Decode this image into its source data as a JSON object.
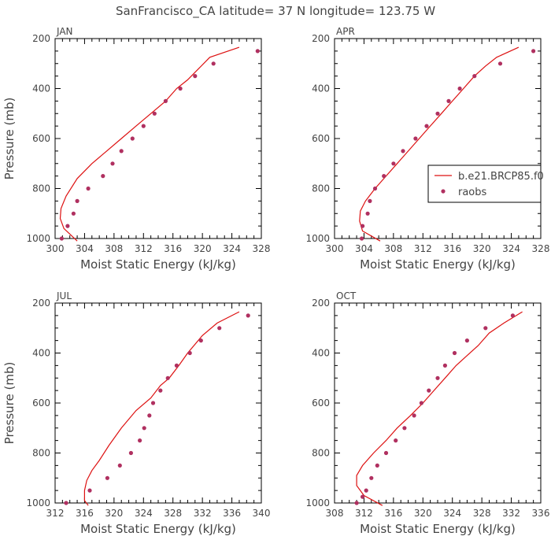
{
  "title": "SanFrancisco_CA  latitude= 37 N longitude= 123.75 W",
  "colors": {
    "model": "#dd1111",
    "obs": "#b03060",
    "axis": "#000000",
    "text": "#444444"
  },
  "legend": {
    "model_label": "b.e21.BRCP85.f0",
    "obs_label": "raobs",
    "position": "right-middle of APR panel"
  },
  "chart_data": [
    {
      "type": "line",
      "panel": "JAN",
      "xlabel": "Moist Static Energy (kJ/kg)",
      "ylabel": "Pressure (mb)",
      "xlim": [
        300,
        328
      ],
      "ylim": [
        200,
        1000
      ],
      "xticks": [
        300,
        304,
        308,
        312,
        316,
        320,
        324,
        328
      ],
      "yticks": [
        200,
        400,
        600,
        800,
        1000
      ],
      "y_inverted": true,
      "series": [
        {
          "name": "b.e21.BRCP85.f0",
          "kind": "line",
          "x": [
            325.0,
            321.0,
            319.5,
            318.0,
            316.5,
            315.0,
            313.0,
            311.0,
            309.0,
            307.0,
            305.0,
            303.0,
            301.5,
            300.8,
            300.7,
            301.2,
            303.0
          ],
          "y": [
            235,
            275,
            320,
            365,
            400,
            450,
            500,
            550,
            600,
            650,
            700,
            760,
            830,
            880,
            920,
            960,
            1010
          ]
        },
        {
          "name": "raobs",
          "kind": "scatter",
          "x": [
            327.5,
            321.5,
            319.0,
            317.0,
            315.0,
            313.5,
            312.0,
            310.5,
            309.0,
            307.8,
            306.5,
            304.5,
            303.0,
            302.5,
            301.7,
            300.9
          ],
          "y": [
            250,
            300,
            350,
            400,
            450,
            500,
            550,
            600,
            650,
            700,
            750,
            800,
            850,
            900,
            950,
            1000
          ]
        }
      ]
    },
    {
      "type": "line",
      "panel": "APR",
      "xlabel": "Moist Static Energy (kJ/kg)",
      "ylabel": "",
      "xlim": [
        300,
        328
      ],
      "ylim": [
        200,
        1000
      ],
      "xticks": [
        300,
        304,
        308,
        312,
        316,
        320,
        324,
        328
      ],
      "yticks": [
        200,
        400,
        600,
        800,
        1000
      ],
      "y_inverted": true,
      "series": [
        {
          "name": "b.e21.BRCP85.f0",
          "kind": "line",
          "x": [
            325.0,
            322.0,
            320.5,
            319.0,
            317.5,
            316.0,
            314.5,
            313.0,
            311.5,
            310.0,
            308.5,
            307.0,
            305.5,
            304.2,
            303.5,
            303.4,
            303.8,
            306.2
          ],
          "y": [
            235,
            275,
            310,
            350,
            400,
            450,
            500,
            550,
            600,
            650,
            700,
            750,
            800,
            850,
            890,
            930,
            970,
            1010
          ]
        },
        {
          "name": "raobs",
          "kind": "scatter",
          "x": [
            327.0,
            322.5,
            319.0,
            317.0,
            315.5,
            314.0,
            312.5,
            311.0,
            309.3,
            308.0,
            306.7,
            305.5,
            304.8,
            304.5,
            303.8,
            303.7
          ],
          "y": [
            250,
            300,
            350,
            400,
            450,
            500,
            550,
            600,
            650,
            700,
            750,
            800,
            850,
            900,
            950,
            1000
          ]
        }
      ]
    },
    {
      "type": "line",
      "panel": "JUL",
      "xlabel": "Moist Static Energy (kJ/kg)",
      "ylabel": "Pressure (mb)",
      "xlim": [
        312,
        340
      ],
      "ylim": [
        200,
        1000
      ],
      "xticks": [
        312,
        316,
        320,
        324,
        328,
        332,
        336,
        340
      ],
      "yticks": [
        200,
        400,
        600,
        800,
        1000
      ],
      "y_inverted": true,
      "series": [
        {
          "name": "b.e21.BRCP85.f0",
          "kind": "line",
          "x": [
            337.0,
            334.0,
            332.0,
            330.0,
            328.8,
            327.5,
            326.3,
            325.0,
            323.0,
            321.0,
            319.3,
            318.0,
            317.0,
            316.3,
            316.0,
            316.0,
            316.5
          ],
          "y": [
            235,
            280,
            330,
            400,
            450,
            500,
            530,
            580,
            630,
            700,
            770,
            830,
            870,
            910,
            950,
            990,
            1010
          ]
        },
        {
          "name": "raobs",
          "kind": "scatter",
          "x": [
            338.2,
            334.3,
            331.8,
            330.3,
            328.5,
            327.3,
            326.3,
            325.3,
            324.8,
            324.1,
            323.5,
            322.3,
            320.8,
            319.1,
            316.7,
            313.5
          ],
          "y": [
            250,
            300,
            350,
            400,
            450,
            500,
            550,
            600,
            650,
            700,
            750,
            800,
            850,
            900,
            950,
            1000
          ]
        }
      ]
    },
    {
      "type": "line",
      "panel": "OCT",
      "xlabel": "Moist Static Energy (kJ/kg)",
      "ylabel": "",
      "xlim": [
        308,
        336
      ],
      "ylim": [
        200,
        1000
      ],
      "xticks": [
        308,
        312,
        316,
        320,
        324,
        328,
        332,
        336
      ],
      "yticks": [
        200,
        400,
        600,
        800,
        1000
      ],
      "y_inverted": true,
      "series": [
        {
          "name": "b.e21.BRCP85.f0",
          "kind": "line",
          "x": [
            333.5,
            331.0,
            329.0,
            327.5,
            326.0,
            324.5,
            323.0,
            321.5,
            320.0,
            318.3,
            316.5,
            315.0,
            313.3,
            311.8,
            311.0,
            311.0,
            312.0,
            314.5
          ],
          "y": [
            235,
            280,
            320,
            370,
            410,
            450,
            500,
            550,
            600,
            650,
            700,
            750,
            800,
            850,
            890,
            930,
            970,
            1010
          ]
        },
        {
          "name": "raobs",
          "kind": "scatter",
          "x": [
            332.2,
            328.5,
            326.0,
            324.3,
            323.0,
            322.0,
            320.8,
            319.8,
            318.8,
            317.5,
            316.3,
            315.0,
            313.8,
            313.0,
            312.3,
            311.8,
            311.0
          ],
          "y": [
            250,
            300,
            350,
            400,
            450,
            500,
            550,
            600,
            650,
            700,
            750,
            800,
            850,
            900,
            950,
            975,
            1000
          ]
        }
      ]
    }
  ]
}
